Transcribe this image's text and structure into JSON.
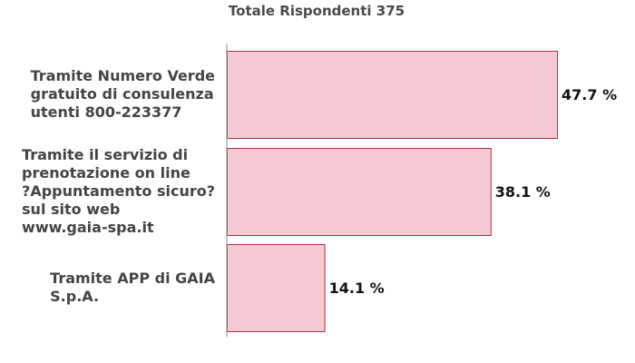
{
  "chart_data": {
    "type": "bar",
    "orientation": "horizontal",
    "title": "Totale Rispondenti 375",
    "categories": [
      [
        "Tramite Numero Verde",
        "gratuito di consulenza",
        "utenti 800-223377"
      ],
      [
        "Tramite il servizio di",
        "prenotazione on line",
        "?Appuntamento sicuro?",
        "sul sito web",
        "www.gaia-spa.it"
      ],
      [
        "Tramite APP di GAIA",
        "S.p.A."
      ]
    ],
    "values": [
      47.7,
      38.1,
      14.1
    ],
    "value_labels": [
      "47.7 %",
      "38.1 %",
      "14.1 %"
    ],
    "unit": "%",
    "xlim": [
      0,
      57
    ],
    "grid": false,
    "legend": "none",
    "colors": {
      "bar_fill": "#f5cad2",
      "bar_stroke": "#b0304a",
      "axis": "#888888"
    }
  }
}
